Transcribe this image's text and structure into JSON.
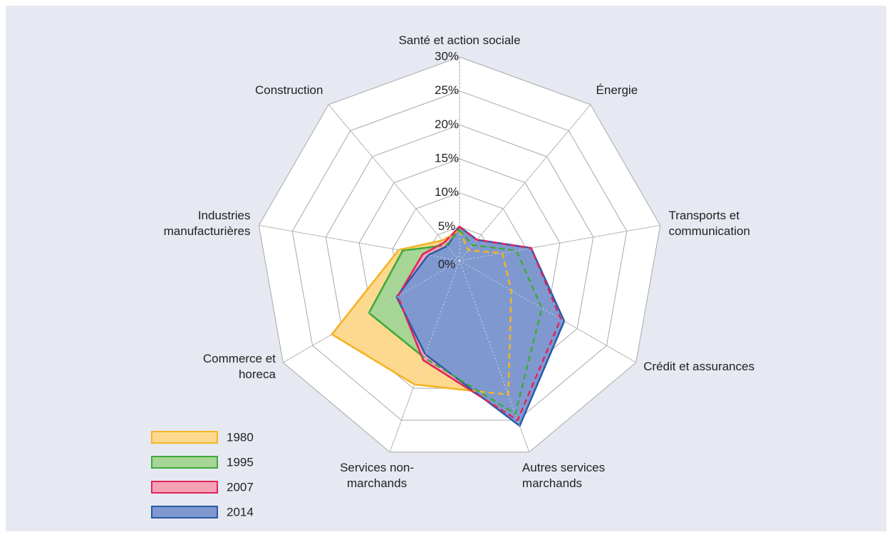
{
  "chart_data": {
    "type": "radar",
    "categories": [
      "Santé et action sociale",
      "Énergie",
      "Transports et communication",
      "Crédit et assurances",
      "Autres services marchands",
      "Services non-marchands",
      "Commerce et horeca",
      "Industries manufacturières",
      "Construction"
    ],
    "ylim": [
      0,
      30
    ],
    "yticks": [
      {
        "value": 0,
        "label": "0%"
      },
      {
        "value": 5,
        "label": "5%"
      },
      {
        "value": 10,
        "label": "10%"
      },
      {
        "value": 15,
        "label": "15%"
      },
      {
        "value": 20,
        "label": "20%"
      },
      {
        "value": 25,
        "label": "25%"
      },
      {
        "value": 30,
        "label": "30%"
      }
    ],
    "series": [
      {
        "name": "1980",
        "color": "#f5b325",
        "fill": "#fdd98f",
        "values": [
          4.5,
          2,
          6.4,
          8.8,
          21,
          19.4,
          21.7,
          9.1,
          3.9
        ]
      },
      {
        "name": "1995",
        "color": "#3faa3b",
        "fill": "#a6d596",
        "values": [
          4.5,
          3,
          8.5,
          14,
          24,
          15.2,
          15.4,
          8.5,
          3
        ]
      },
      {
        "name": "2007",
        "color": "#e2235b",
        "fill": "#f4a3b6",
        "values": [
          5,
          4,
          10.7,
          17.2,
          25,
          15.6,
          10.5,
          5.5,
          3.5
        ]
      },
      {
        "name": "2014",
        "color": "#2a5aa8",
        "fill": "#7f99d0",
        "values": [
          5,
          4,
          10.7,
          17.8,
          25.9,
          14.7,
          10.7,
          4.7,
          2.8
        ]
      }
    ],
    "legend": "bottom-left"
  }
}
